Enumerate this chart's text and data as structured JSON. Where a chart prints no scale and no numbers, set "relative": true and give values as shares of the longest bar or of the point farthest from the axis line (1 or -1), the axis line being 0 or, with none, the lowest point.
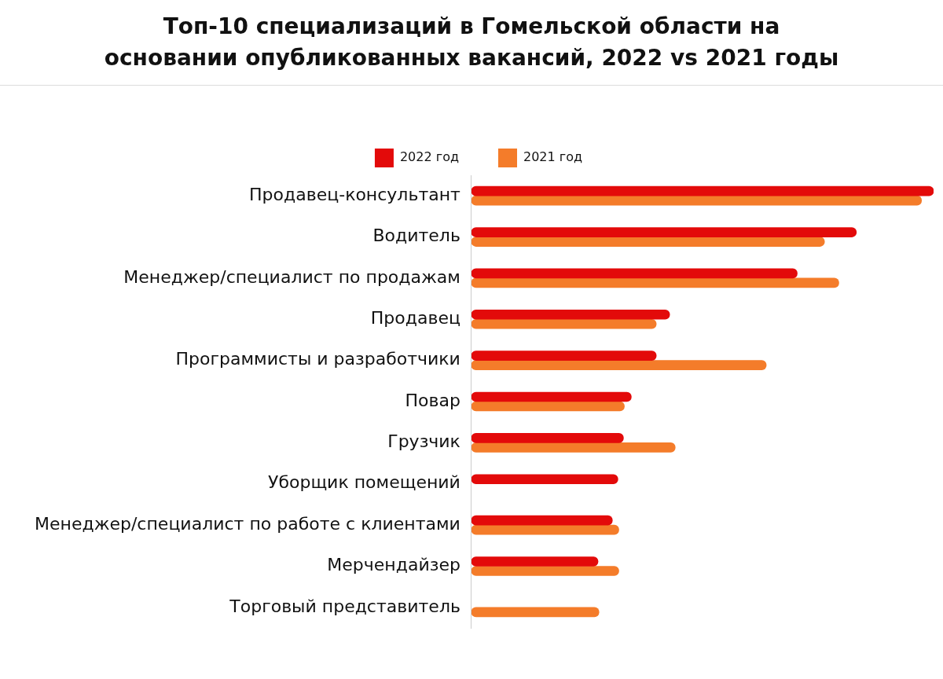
{
  "chart_data": {
    "type": "bar",
    "orientation": "horizontal",
    "relative": true,
    "title": "Топ-10 специализаций в Гомельской области на основании опубликованных вакансий, 2022 vs 2021 годы",
    "categories": [
      "Продавец-консультант",
      "Водитель",
      "Менеджер/специалист по продажам",
      "Продавец",
      "Программисты и разработчики",
      "Повар",
      "Грузчик",
      "Уборщик помещений",
      "Менеджер/специалист по работе с клиентами",
      "Мерчендайзер",
      "Торговый представитель"
    ],
    "series": [
      {
        "name": "2022 год",
        "color": "#e30a0a",
        "values": [
          1.0,
          0.833,
          0.705,
          0.429,
          0.4,
          0.346,
          0.329,
          0.317,
          0.305,
          0.274,
          null
        ]
      },
      {
        "name": "2021 год",
        "color": "#f47c2a",
        "values": [
          0.974,
          0.764,
          0.795,
          0.4,
          0.638,
          0.331,
          0.441,
          null,
          0.319,
          0.319,
          0.276
        ]
      }
    ],
    "legend": "top"
  }
}
